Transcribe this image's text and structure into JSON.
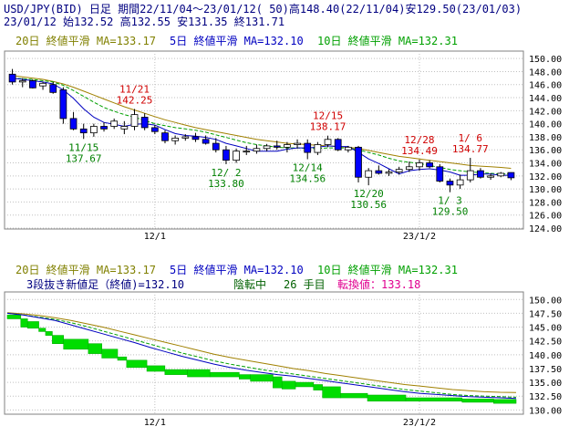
{
  "header": {
    "line1": "USD/JPY(BID) 日足 期間22/11/04～23/01/12( 50)高148.40(22/11/04)安129.50(23/01/03)",
    "line2": "23/01/12          始132.52 高132.55 安131.35 終131.71"
  },
  "legend": {
    "ma20": "20日 終値平滑 MA=133.17",
    "ma5": "5日 終値平滑 MA=132.10",
    "ma10": "10日 終値平滑 MA=132.31"
  },
  "lower_info": {
    "label": "3段抜き新値足（終値)=132.10",
    "status": "陰転中",
    "count": "26 手目",
    "turn_label": "転換値：133.18"
  },
  "colors": {
    "background": "#ffffff",
    "grid": "#c0c0c0",
    "up_candle": "#ffffff",
    "down_candle": "#0000ff",
    "ma20": "#a08000",
    "ma5": "#0000c0",
    "ma10": "#00a000",
    "high_annotation": "#d00000",
    "low_annotation": "#008000",
    "breakout_bar": "#00dd00",
    "header_text": "#000080",
    "legend_ma20": "#808000",
    "legend_ma5": "#0000c0",
    "legend_ma10": "#00a000",
    "turn_text": "#e00090"
  },
  "chart_data": [
    {
      "type": "candlestick",
      "x_ticks": [
        "12/1",
        "23/1/2"
      ],
      "y_ticks": [
        "124.00",
        "126.00",
        "128.00",
        "130.00",
        "132.00",
        "134.00",
        "136.00",
        "138.00",
        "140.00",
        "142.00",
        "144.00",
        "146.00",
        "148.00",
        "150.00"
      ],
      "ylim": [
        124,
        151
      ],
      "grid": true,
      "candles": [
        {
          "o": 147.6,
          "h": 148.4,
          "l": 146.0,
          "c": 146.4
        },
        {
          "o": 146.4,
          "h": 147.0,
          "l": 145.6,
          "c": 146.6
        },
        {
          "o": 146.6,
          "h": 146.8,
          "l": 145.4,
          "c": 145.5
        },
        {
          "o": 145.8,
          "h": 146.4,
          "l": 145.2,
          "c": 146.2
        },
        {
          "o": 146.0,
          "h": 146.4,
          "l": 144.6,
          "c": 144.8
        },
        {
          "o": 145.2,
          "h": 145.6,
          "l": 140.0,
          "c": 140.8
        },
        {
          "o": 140.8,
          "h": 141.8,
          "l": 139.0,
          "c": 139.2
        },
        {
          "o": 139.2,
          "h": 140.0,
          "l": 137.67,
          "c": 138.6
        },
        {
          "o": 138.6,
          "h": 140.0,
          "l": 138.0,
          "c": 139.6
        },
        {
          "o": 139.6,
          "h": 140.2,
          "l": 138.8,
          "c": 139.2
        },
        {
          "o": 139.6,
          "h": 140.8,
          "l": 139.2,
          "c": 140.4
        },
        {
          "o": 139.2,
          "h": 140.4,
          "l": 138.4,
          "c": 139.6
        },
        {
          "o": 139.6,
          "h": 142.25,
          "l": 139.0,
          "c": 141.4
        },
        {
          "o": 141.0,
          "h": 141.6,
          "l": 139.0,
          "c": 139.4
        },
        {
          "o": 139.4,
          "h": 139.8,
          "l": 138.4,
          "c": 138.8
        },
        {
          "o": 138.6,
          "h": 139.0,
          "l": 137.0,
          "c": 137.4
        },
        {
          "o": 137.4,
          "h": 138.2,
          "l": 136.8,
          "c": 137.8
        },
        {
          "o": 137.8,
          "h": 138.4,
          "l": 137.4,
          "c": 138.0
        },
        {
          "o": 138.0,
          "h": 138.6,
          "l": 137.2,
          "c": 137.6
        },
        {
          "o": 137.6,
          "h": 138.2,
          "l": 136.8,
          "c": 137.0
        },
        {
          "o": 137.0,
          "h": 137.8,
          "l": 135.6,
          "c": 136.0
        },
        {
          "o": 136.0,
          "h": 136.6,
          "l": 133.8,
          "c": 134.4
        },
        {
          "o": 134.4,
          "h": 136.2,
          "l": 134.0,
          "c": 135.8
        },
        {
          "o": 135.8,
          "h": 136.6,
          "l": 135.2,
          "c": 135.8
        },
        {
          "o": 135.8,
          "h": 136.8,
          "l": 135.4,
          "c": 136.2
        },
        {
          "o": 136.2,
          "h": 136.9,
          "l": 135.8,
          "c": 136.6
        },
        {
          "o": 136.6,
          "h": 137.4,
          "l": 136.0,
          "c": 136.4
        },
        {
          "o": 136.4,
          "h": 137.2,
          "l": 135.6,
          "c": 136.8
        },
        {
          "o": 136.8,
          "h": 137.6,
          "l": 136.2,
          "c": 137.0
        },
        {
          "o": 137.0,
          "h": 137.6,
          "l": 134.56,
          "c": 135.6
        },
        {
          "o": 135.6,
          "h": 137.2,
          "l": 135.2,
          "c": 136.8
        },
        {
          "o": 136.8,
          "h": 138.17,
          "l": 136.4,
          "c": 137.6
        },
        {
          "o": 137.6,
          "h": 137.8,
          "l": 135.8,
          "c": 136.0
        },
        {
          "o": 136.0,
          "h": 136.6,
          "l": 135.6,
          "c": 136.4
        },
        {
          "o": 136.4,
          "h": 136.6,
          "l": 131.0,
          "c": 131.8
        },
        {
          "o": 131.8,
          "h": 133.2,
          "l": 130.56,
          "c": 132.8
        },
        {
          "o": 132.8,
          "h": 133.6,
          "l": 132.2,
          "c": 132.4
        },
        {
          "o": 132.4,
          "h": 133.0,
          "l": 132.0,
          "c": 132.6
        },
        {
          "o": 132.6,
          "h": 133.4,
          "l": 132.2,
          "c": 133.0
        },
        {
          "o": 133.0,
          "h": 134.2,
          "l": 132.6,
          "c": 133.4
        },
        {
          "o": 133.4,
          "h": 134.49,
          "l": 132.8,
          "c": 134.0
        },
        {
          "o": 134.0,
          "h": 134.4,
          "l": 133.2,
          "c": 133.4
        },
        {
          "o": 133.4,
          "h": 133.8,
          "l": 131.0,
          "c": 131.2
        },
        {
          "o": 131.2,
          "h": 131.6,
          "l": 129.5,
          "c": 130.6
        },
        {
          "o": 130.6,
          "h": 132.2,
          "l": 130.0,
          "c": 131.4
        },
        {
          "o": 131.4,
          "h": 134.77,
          "l": 131.0,
          "c": 132.8
        },
        {
          "o": 132.8,
          "h": 133.2,
          "l": 131.6,
          "c": 131.8
        },
        {
          "o": 131.8,
          "h": 132.4,
          "l": 131.4,
          "c": 132.0
        },
        {
          "o": 132.0,
          "h": 132.6,
          "l": 131.8,
          "c": 132.4
        },
        {
          "o": 132.52,
          "h": 132.55,
          "l": 131.35,
          "c": 131.71
        }
      ],
      "ma5": [
        147.0,
        146.8,
        146.6,
        146.4,
        146.1,
        145.2,
        143.9,
        142.3,
        141.0,
        140.2,
        139.9,
        139.6,
        139.9,
        140.0,
        139.8,
        139.1,
        138.5,
        138.2,
        138.1,
        137.9,
        137.6,
        137.0,
        136.6,
        136.2,
        135.8,
        135.8,
        135.8,
        136.1,
        136.3,
        136.3,
        136.4,
        136.6,
        136.5,
        136.5,
        135.6,
        134.6,
        133.9,
        133.1,
        132.3,
        132.8,
        133.0,
        133.1,
        132.9,
        132.6,
        132.1,
        132.1,
        132.3,
        132.3,
        132.1,
        132.1
      ],
      "ma10": [
        147.0,
        146.9,
        146.8,
        146.6,
        146.4,
        145.9,
        145.1,
        144.2,
        143.3,
        142.5,
        141.9,
        141.4,
        141.0,
        140.5,
        140.0,
        139.7,
        139.4,
        139.2,
        139.0,
        138.7,
        138.3,
        137.9,
        137.5,
        137.1,
        136.8,
        136.6,
        136.4,
        136.3,
        136.3,
        136.2,
        136.2,
        136.3,
        136.3,
        136.3,
        136.0,
        135.6,
        135.2,
        134.7,
        134.3,
        134.1,
        133.9,
        133.6,
        133.3,
        133.0,
        132.8,
        132.6,
        132.5,
        132.4,
        132.3,
        132.31
      ],
      "ma20": [
        147.4,
        147.2,
        147.0,
        146.8,
        146.5,
        146.1,
        145.6,
        145.0,
        144.4,
        143.8,
        143.2,
        142.6,
        142.1,
        141.6,
        141.1,
        140.6,
        140.2,
        139.8,
        139.4,
        139.1,
        138.8,
        138.5,
        138.2,
        137.9,
        137.6,
        137.4,
        137.2,
        137.0,
        136.9,
        136.8,
        136.7,
        136.6,
        136.5,
        136.4,
        136.2,
        135.9,
        135.6,
        135.3,
        135.0,
        134.8,
        134.6,
        134.4,
        134.2,
        134.0,
        133.8,
        133.6,
        133.5,
        133.4,
        133.3,
        133.17
      ],
      "annotations_high": [
        {
          "i": 12,
          "date": "11/21",
          "value": "142.25"
        },
        {
          "i": 31,
          "date": "12/15",
          "value": "138.17"
        },
        {
          "i": 40,
          "date": "12/28",
          "value": "134.49"
        },
        {
          "i": 45,
          "date": "1/ 6",
          "value": "134.77"
        }
      ],
      "annotations_low": [
        {
          "i": 7,
          "date": "11/15",
          "value": "137.67"
        },
        {
          "i": 21,
          "date": "12/ 2",
          "value": "133.80"
        },
        {
          "i": 29,
          "date": "12/14",
          "value": "134.56"
        },
        {
          "i": 35,
          "date": "12/20",
          "value": "130.56"
        },
        {
          "i": 43,
          "date": "1/ 3",
          "value": "129.50"
        }
      ]
    },
    {
      "type": "line",
      "x_ticks": [
        "12/1",
        "23/1/2"
      ],
      "y_ticks": [
        "130.00",
        "132.50",
        "135.00",
        "137.50",
        "140.00",
        "142.50",
        "145.00",
        "147.50",
        "150.00"
      ],
      "ylim": [
        129.4,
        151.2
      ],
      "grid": true,
      "bricks": [
        [
          0,
          6,
          147.2,
          146.5
        ],
        [
          6,
          9,
          146.5,
          145.0
        ],
        [
          9,
          14,
          146.0,
          144.8
        ],
        [
          14,
          17,
          144.8,
          144.2
        ],
        [
          17,
          20,
          144.2,
          143.5
        ],
        [
          20,
          25,
          143.5,
          142.0
        ],
        [
          25,
          36,
          142.8,
          141.0
        ],
        [
          36,
          42,
          142.0,
          140.2
        ],
        [
          42,
          49,
          141.0,
          139.4
        ],
        [
          49,
          53,
          139.6,
          139.0
        ],
        [
          53,
          62,
          139.0,
          137.7
        ],
        [
          62,
          70,
          138.0,
          137.0
        ],
        [
          70,
          80,
          137.3,
          136.4
        ],
        [
          80,
          90,
          137.3,
          136.0
        ],
        [
          90,
          103,
          136.8,
          136.0
        ],
        [
          103,
          108,
          136.4,
          135.6
        ],
        [
          108,
          118,
          136.4,
          135.2
        ],
        [
          118,
          122,
          136.0,
          134.0
        ],
        [
          122,
          128,
          135.2,
          133.8
        ],
        [
          128,
          136,
          135.0,
          134.2
        ],
        [
          136,
          140,
          134.6,
          133.6
        ],
        [
          140,
          148,
          134.2,
          132.2
        ],
        [
          148,
          160,
          133.0,
          132.2
        ],
        [
          160,
          177,
          132.7,
          131.6
        ],
        [
          177,
          202,
          132.2,
          131.6
        ],
        [
          202,
          216,
          132.0,
          131.4
        ],
        [
          216,
          226,
          131.9,
          131.2
        ]
      ],
      "ma5": [
        147.5,
        147.2,
        146.7,
        146.2,
        145.4,
        144.6,
        143.8,
        143.0,
        142.2,
        141.3,
        140.5,
        139.7,
        139.0,
        138.3,
        137.7,
        137.2,
        136.8,
        136.4,
        136.1,
        135.7,
        135.3,
        134.9,
        134.5,
        134.1,
        133.7,
        133.3,
        133.0,
        132.8,
        132.6,
        132.4,
        132.3,
        132.2,
        132.1
      ],
      "ma10": [
        147.5,
        147.2,
        146.8,
        146.4,
        145.8,
        145.1,
        144.3,
        143.5,
        142.7,
        141.9,
        141.1,
        140.3,
        139.6,
        138.9,
        138.3,
        137.8,
        137.3,
        136.9,
        136.5,
        136.1,
        135.7,
        135.3,
        134.9,
        134.5,
        134.1,
        133.7,
        133.4,
        133.1,
        132.8,
        132.6,
        132.5,
        132.4,
        132.31
      ],
      "ma20": [
        147.6,
        147.4,
        147.1,
        146.7,
        146.2,
        145.6,
        145.0,
        144.3,
        143.6,
        142.9,
        142.2,
        141.5,
        140.8,
        140.1,
        139.5,
        139.0,
        138.5,
        138.0,
        137.5,
        137.1,
        136.6,
        136.2,
        135.8,
        135.4,
        135.0,
        134.6,
        134.3,
        134.0,
        133.7,
        133.5,
        133.3,
        133.2,
        133.17
      ]
    }
  ]
}
